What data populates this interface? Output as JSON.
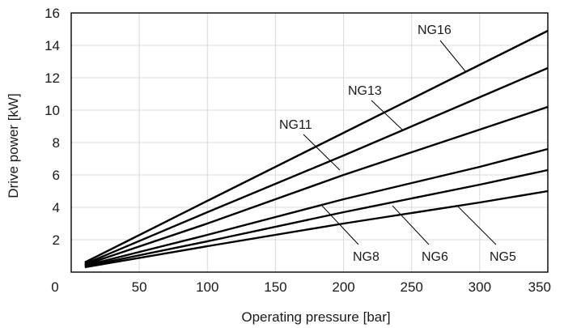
{
  "chart_data": {
    "type": "line",
    "title": "",
    "xlabel": "Operating pressure [bar]",
    "ylabel": "Drive power [kW]",
    "xlim": [
      0,
      350
    ],
    "ylim": [
      0,
      16
    ],
    "x_ticks": [
      0,
      50,
      100,
      150,
      200,
      250,
      300,
      350
    ],
    "y_ticks": [
      2,
      4,
      6,
      8,
      10,
      12,
      14,
      16
    ],
    "x_tick_labels": [
      "0",
      "50",
      "100",
      "150",
      "200",
      "250",
      "300",
      "350"
    ],
    "y_tick_labels": [
      "2",
      "4",
      "6",
      "8",
      "10",
      "12",
      "14",
      "16"
    ],
    "grid": true,
    "series": [
      {
        "name": "NG16",
        "x": [
          10,
          100,
          200,
          300,
          350
        ],
        "y": [
          0.6,
          4.4,
          8.6,
          12.8,
          14.9
        ]
      },
      {
        "name": "NG13",
        "x": [
          10,
          100,
          200,
          300,
          350
        ],
        "y": [
          0.5,
          3.7,
          7.2,
          10.8,
          12.6
        ]
      },
      {
        "name": "NG11",
        "x": [
          10,
          100,
          200,
          300,
          350
        ],
        "y": [
          0.45,
          3.0,
          6.0,
          8.8,
          10.2
        ]
      },
      {
        "name": "NG8",
        "x": [
          10,
          100,
          200,
          300,
          350
        ],
        "y": [
          0.4,
          2.3,
          4.5,
          6.5,
          7.6
        ]
      },
      {
        "name": "NG6",
        "x": [
          10,
          100,
          200,
          300,
          350
        ],
        "y": [
          0.35,
          1.9,
          3.7,
          5.4,
          6.3
        ]
      },
      {
        "name": "NG5",
        "x": [
          10,
          100,
          200,
          300,
          350
        ],
        "y": [
          0.3,
          1.6,
          3.0,
          4.3,
          5.0
        ]
      }
    ]
  }
}
